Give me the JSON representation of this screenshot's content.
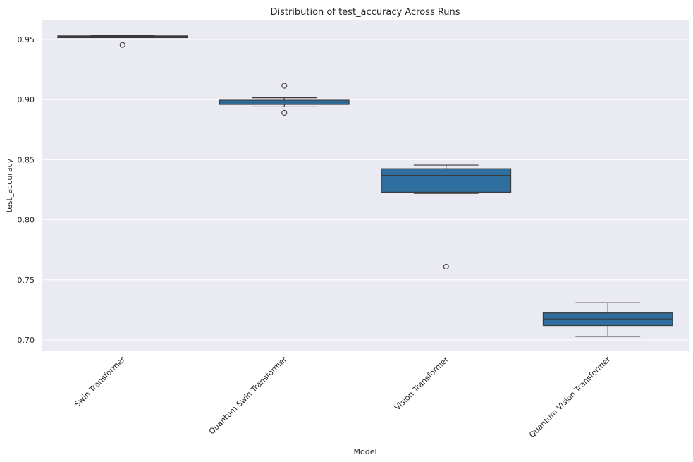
{
  "chart_data": {
    "type": "box",
    "title": "Distribution of test_accuracy Across Runs",
    "xlabel": "Model",
    "ylabel": "test_accuracy",
    "categories": [
      "Swin Transformer",
      "Quantum Swin Transformer",
      "Vision Transformer",
      "Quantum Vision Transformer"
    ],
    "ylim": [
      0.69,
      0.965
    ],
    "yticks": [
      "0.70",
      "0.75",
      "0.80",
      "0.85",
      "0.90",
      "0.95"
    ],
    "ytick_values": [
      0.7,
      0.75,
      0.8,
      0.85,
      0.9,
      0.95
    ],
    "grid": "on",
    "boxes": [
      {
        "category": "Swin Transformer",
        "whisker_low": 0.9515,
        "q1": 0.9515,
        "median": 0.9525,
        "q3": 0.953,
        "whisker_high": 0.9535,
        "outliers": [
          0.9455
        ]
      },
      {
        "category": "Quantum Swin Transformer",
        "whisker_low": 0.894,
        "q1": 0.896,
        "median": 0.898,
        "q3": 0.8995,
        "whisker_high": 0.9015,
        "outliers": [
          0.9115,
          0.889
        ]
      },
      {
        "category": "Vision Transformer",
        "whisker_low": 0.822,
        "q1": 0.823,
        "median": 0.837,
        "q3": 0.8425,
        "whisker_high": 0.8455,
        "outliers": [
          0.761
        ]
      },
      {
        "category": "Quantum Vision Transformer",
        "whisker_low": 0.703,
        "q1": 0.712,
        "median": 0.7175,
        "q3": 0.7225,
        "whisker_high": 0.731,
        "outliers": []
      }
    ],
    "colors": {
      "box_fill": "#2f6f9f",
      "box_edge": "#3a3a3a",
      "plot_bg": "#eaeaf2",
      "grid": "#ffffff"
    }
  }
}
